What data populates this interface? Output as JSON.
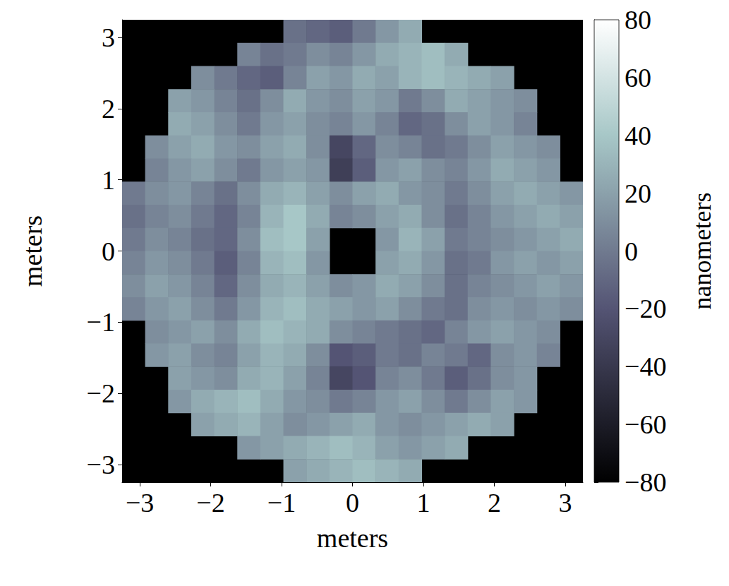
{
  "chart_data": {
    "type": "heatmap",
    "x_label": "meters",
    "y_label": "meters",
    "xlim": [
      -3.25,
      3.25
    ],
    "ylim": [
      -3.25,
      3.25
    ],
    "xticks": [
      {
        "value": -3,
        "label": "−3"
      },
      {
        "value": -2,
        "label": "−2"
      },
      {
        "value": -1,
        "label": "−1"
      },
      0,
      1,
      2,
      3
    ],
    "yticks": [
      {
        "value": -3,
        "label": "−3"
      },
      {
        "value": -2,
        "label": "−2"
      },
      {
        "value": -1,
        "label": "−1"
      },
      0,
      1,
      2,
      3
    ],
    "x": [
      -3.0875,
      -2.7625,
      -2.4375,
      -2.1125,
      -1.7875,
      -1.4625,
      -1.1375,
      -0.8125,
      -0.4875,
      -0.1625,
      0.1625,
      0.4875,
      0.8125,
      1.1375,
      1.4625,
      1.7875,
      2.1125,
      2.4375,
      2.7625,
      3.0875
    ],
    "y": [
      3.0875,
      2.7625,
      2.4375,
      2.1125,
      1.7875,
      1.4625,
      1.1375,
      0.8125,
      0.4875,
      0.1625,
      -0.1625,
      -0.4875,
      -0.8125,
      -1.1375,
      -1.4625,
      -1.7875,
      -2.1125,
      -2.4375,
      -2.7625,
      -3.0875
    ],
    "z": [
      [
        null,
        null,
        null,
        null,
        null,
        null,
        null,
        -5,
        -10,
        -15,
        0,
        15,
        25,
        null,
        null,
        null,
        null,
        null,
        null,
        null
      ],
      [
        null,
        null,
        null,
        null,
        null,
        5,
        -5,
        0,
        10,
        5,
        15,
        25,
        30,
        35,
        25,
        null,
        null,
        null,
        null,
        null
      ],
      [
        null,
        null,
        null,
        10,
        0,
        -10,
        -15,
        5,
        20,
        15,
        25,
        20,
        30,
        35,
        30,
        25,
        20,
        null,
        null,
        null
      ],
      [
        null,
        null,
        20,
        15,
        5,
        -5,
        10,
        25,
        15,
        10,
        20,
        15,
        0,
        10,
        25,
        20,
        15,
        10,
        null,
        null
      ],
      [
        null,
        null,
        25,
        20,
        10,
        0,
        15,
        20,
        10,
        5,
        15,
        5,
        -10,
        -5,
        10,
        20,
        15,
        5,
        null,
        null
      ],
      [
        null,
        10,
        20,
        25,
        15,
        10,
        20,
        25,
        10,
        -30,
        -10,
        10,
        5,
        -5,
        0,
        10,
        20,
        15,
        10,
        null
      ],
      [
        null,
        5,
        15,
        20,
        10,
        0,
        15,
        20,
        15,
        -35,
        -15,
        15,
        20,
        10,
        5,
        15,
        25,
        20,
        15,
        null
      ],
      [
        0,
        10,
        15,
        5,
        -5,
        10,
        25,
        30,
        20,
        10,
        20,
        25,
        15,
        10,
        0,
        10,
        20,
        25,
        20,
        15
      ],
      [
        -5,
        5,
        10,
        0,
        -10,
        5,
        30,
        40,
        25,
        5,
        10,
        20,
        25,
        10,
        -5,
        5,
        15,
        20,
        25,
        20
      ],
      [
        0,
        10,
        5,
        -5,
        -10,
        10,
        35,
        40,
        20,
        null,
        null,
        15,
        30,
        20,
        0,
        5,
        10,
        15,
        20,
        25
      ],
      [
        5,
        15,
        10,
        0,
        -15,
        5,
        30,
        35,
        15,
        null,
        null,
        20,
        25,
        15,
        -5,
        0,
        15,
        20,
        15,
        20
      ],
      [
        10,
        20,
        15,
        5,
        -10,
        10,
        25,
        30,
        20,
        10,
        15,
        25,
        20,
        10,
        -5,
        5,
        10,
        15,
        20,
        15
      ],
      [
        5,
        15,
        20,
        10,
        0,
        15,
        30,
        35,
        25,
        20,
        15,
        20,
        10,
        0,
        -5,
        10,
        15,
        10,
        15,
        10
      ],
      [
        null,
        10,
        15,
        20,
        10,
        25,
        35,
        30,
        25,
        10,
        5,
        0,
        -5,
        -10,
        5,
        15,
        20,
        15,
        10,
        null
      ],
      [
        null,
        15,
        20,
        10,
        5,
        20,
        30,
        25,
        10,
        -20,
        -15,
        0,
        -5,
        5,
        0,
        -10,
        10,
        15,
        5,
        null
      ],
      [
        null,
        null,
        20,
        15,
        10,
        25,
        30,
        20,
        5,
        -30,
        -20,
        5,
        10,
        0,
        -15,
        -5,
        10,
        15,
        null,
        null
      ],
      [
        null,
        null,
        15,
        25,
        30,
        35,
        25,
        15,
        10,
        0,
        5,
        15,
        20,
        10,
        0,
        10,
        20,
        15,
        null,
        null
      ],
      [
        null,
        null,
        null,
        20,
        25,
        30,
        20,
        10,
        15,
        20,
        25,
        15,
        10,
        15,
        20,
        25,
        20,
        null,
        null,
        null
      ],
      [
        null,
        null,
        null,
        null,
        null,
        15,
        20,
        25,
        30,
        35,
        30,
        20,
        15,
        20,
        25,
        null,
        null,
        null,
        null,
        null
      ],
      [
        null,
        null,
        null,
        null,
        null,
        null,
        null,
        20,
        25,
        30,
        35,
        30,
        25,
        null,
        null,
        null,
        null,
        null,
        null,
        null
      ]
    ],
    "colorbar": {
      "label": "nanometers",
      "range": [
        -80,
        80
      ],
      "ticks": [
        {
          "value": -80,
          "label": "−80"
        },
        {
          "value": -60,
          "label": "−60"
        },
        {
          "value": -40,
          "label": "−40"
        },
        {
          "value": -20,
          "label": "−20"
        },
        0,
        20,
        40,
        60,
        80
      ]
    }
  }
}
